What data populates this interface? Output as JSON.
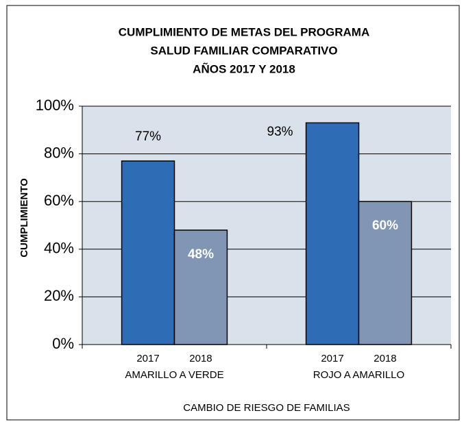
{
  "chart_data": {
    "type": "bar",
    "title": [
      "CUMPLIMIENTO  DE METAS DEL PROGRAMA",
      "SALUD FAMILIAR  COMPARATIVO",
      "AÑOS 2017 Y 2018"
    ],
    "y_label": "CUMPLIMIENTO",
    "x_label": "CAMBIO DE RIESGO DE FAMILIAS",
    "categories": [
      "AMARILLO A VERDE",
      "ROJO A AMARILLO"
    ],
    "series": [
      {
        "name": "2017",
        "color": "#2e6db5",
        "values": [
          77,
          93
        ],
        "value_labels": [
          "77%",
          "93%"
        ]
      },
      {
        "name": "2018",
        "color": "#8096b4",
        "values": [
          48,
          60
        ],
        "value_labels": [
          "48%",
          "60%"
        ]
      }
    ],
    "ylim": [
      0,
      100
    ],
    "yticks": [
      {
        "value": 0,
        "label": "0%"
      },
      {
        "value": 20,
        "label": "20%"
      },
      {
        "value": 40,
        "label": "40%"
      },
      {
        "value": 60,
        "label": "60%"
      },
      {
        "value": 80,
        "label": "80%"
      },
      {
        "value": 100,
        "label": "100%"
      }
    ],
    "grid": true
  }
}
